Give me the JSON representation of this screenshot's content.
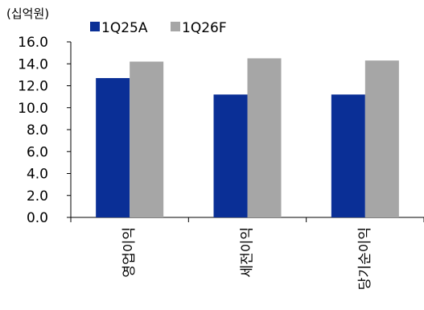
{
  "chart_data": {
    "type": "bar",
    "unit_label": "(십억원)",
    "categories": [
      "영업이익",
      "세전이익",
      "당기순이익"
    ],
    "series": [
      {
        "name": "1Q25A",
        "values": [
          12.7,
          11.2,
          11.2
        ],
        "color": "#0a2f96"
      },
      {
        "name": "1Q26F",
        "values": [
          14.2,
          14.5,
          14.3
        ],
        "color": "#a6a6a6"
      }
    ],
    "ylim": [
      0,
      16
    ],
    "yticks": [
      "0.0",
      "2.0",
      "4.0",
      "6.0",
      "8.0",
      "10.0",
      "12.0",
      "14.0",
      "16.0"
    ],
    "grid": false,
    "legend": "top"
  }
}
